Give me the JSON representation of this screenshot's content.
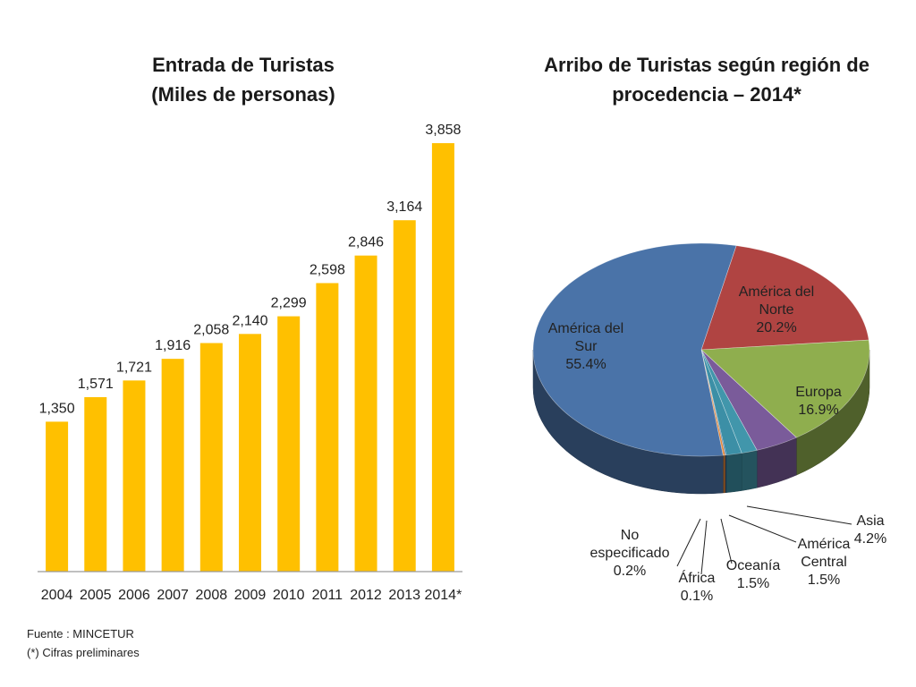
{
  "chart_data": [
    {
      "type": "bar",
      "title": "Entrada de Turistas",
      "subtitle": "(Miles de personas)",
      "categories": [
        "2004",
        "2005",
        "2006",
        "2007",
        "2008",
        "2009",
        "2010",
        "2011",
        "2012",
        "2013",
        "2014*"
      ],
      "values": [
        1350,
        1571,
        1721,
        1916,
        2058,
        2140,
        2299,
        2598,
        2846,
        3164,
        3858
      ],
      "value_labels": [
        "1,350",
        "1,571",
        "1,721",
        "1,916",
        "2,058",
        "2,140",
        "2,299",
        "2,598",
        "2,846",
        "3,164",
        "3,858"
      ],
      "ylim": [
        0,
        4100
      ],
      "grid": false,
      "color": "#FFC000"
    },
    {
      "type": "pie",
      "title": "Arribo de Turistas según región de",
      "title_line2": "procedencia – 2014*",
      "slices": [
        {
          "name": "América del Sur",
          "label_lines": [
            "América del",
            "Sur",
            "55.4%"
          ],
          "value": 55.4,
          "color": "#4A73A8"
        },
        {
          "name": "América del Norte",
          "label_lines": [
            "América del",
            "Norte",
            "20.2%"
          ],
          "value": 20.2,
          "color": "#B04442"
        },
        {
          "name": "Europa",
          "label_lines": [
            "Europa",
            "16.9%"
          ],
          "value": 16.9,
          "color": "#8FAE4E"
        },
        {
          "name": "Asia",
          "label_lines": [
            "Asia",
            "4.2%"
          ],
          "value": 4.2,
          "color": "#7A5B9A"
        },
        {
          "name": "América Central",
          "label_lines": [
            "América",
            "Central",
            "1.5%"
          ],
          "value": 1.5,
          "color": "#4196AB"
        },
        {
          "name": "Oceanía",
          "label_lines": [
            "Oceanía",
            "1.5%"
          ],
          "value": 1.5,
          "color": "#3C8FA6"
        },
        {
          "name": "África",
          "label_lines": [
            "África",
            "0.1%"
          ],
          "value": 0.1,
          "color": "#2E5E8E"
        },
        {
          "name": "No especificado",
          "label_lines": [
            "No",
            "especificado",
            "0.2%"
          ],
          "value": 0.2,
          "color": "#E48A3C"
        }
      ]
    }
  ],
  "footnotes": {
    "source": "Fuente : MINCETUR",
    "preliminary": "(*) Cifras preliminares"
  }
}
